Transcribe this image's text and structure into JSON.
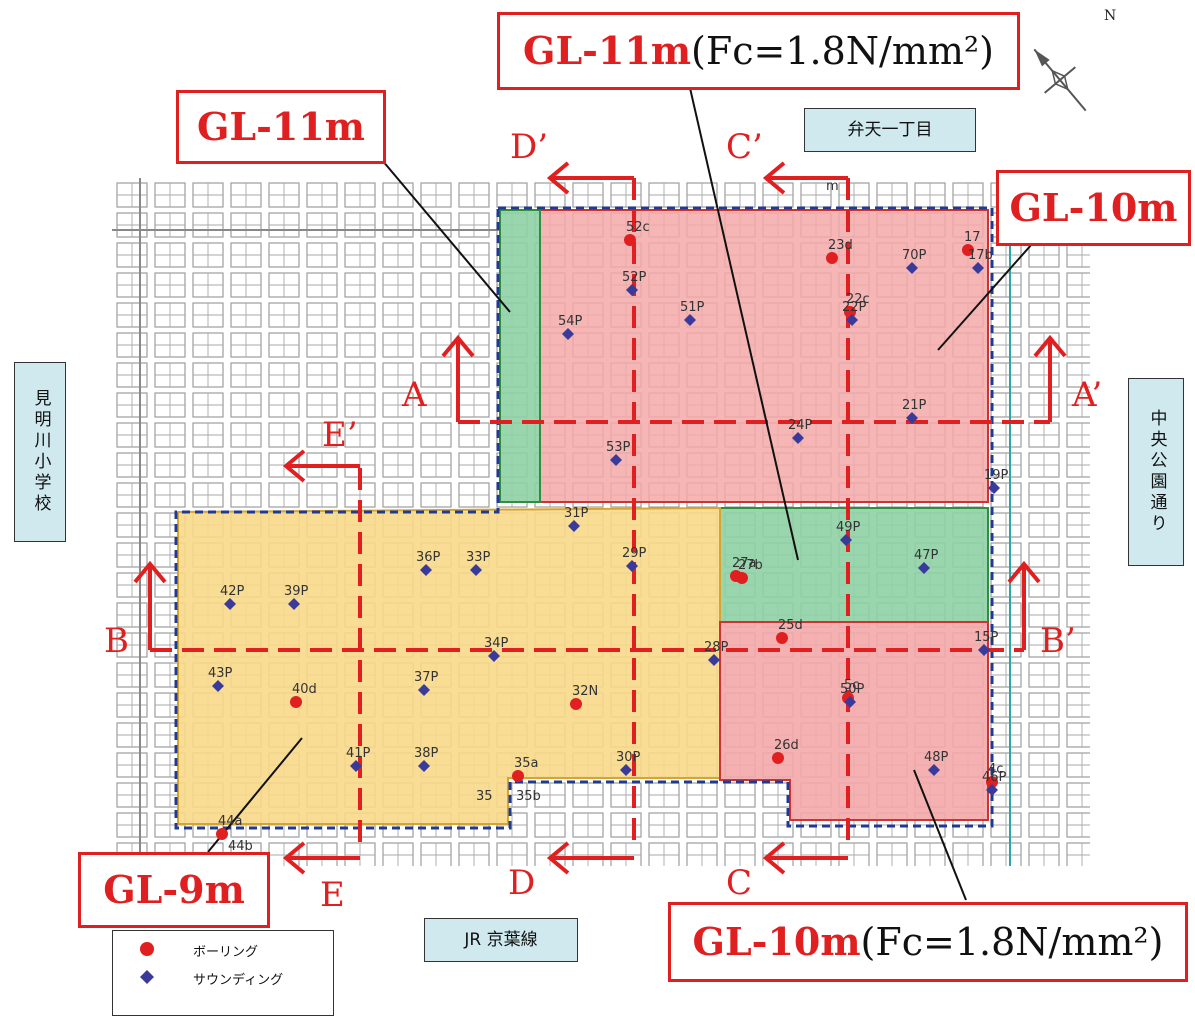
{
  "callouts": {
    "top_center": {
      "depth": "GL-11m",
      "fc": "(Fc=1.8N/mm²)"
    },
    "top_left": {
      "depth": "GL-11m"
    },
    "top_right": {
      "depth": "GL-10m"
    },
    "bottom_left": {
      "depth": "GL-9m"
    },
    "bottom_right": {
      "depth": "GL-10m",
      "fc": "(Fc=1.8N/mm²)"
    }
  },
  "streets": {
    "north": "弁天一丁目",
    "east": "中央公園通り",
    "west": "見明川小学校",
    "south": "JR 京葉線"
  },
  "sections": {
    "A": "A",
    "A_prime": "A’",
    "B": "B",
    "B_prime": "B’",
    "C": "C",
    "C_prime": "C’",
    "D": "D",
    "D_prime": "D’",
    "E": "E",
    "E_prime": "E’"
  },
  "north_label": "N",
  "boring_points": [
    "52c",
    "23d",
    "17",
    "22c",
    "27a",
    "27b",
    "25d",
    "5c",
    "26d",
    "40d",
    "32N",
    "35a",
    "44a",
    "4c"
  ],
  "sounding_points": [
    "52P",
    "51P",
    "54P",
    "70P",
    "17b",
    "22P",
    "24P",
    "21P",
    "53P",
    "31P",
    "29P",
    "36P",
    "33P",
    "42P",
    "39P",
    "34P",
    "28P",
    "43P",
    "37P",
    "41P",
    "38P",
    "30P",
    "49P",
    "47P",
    "50P",
    "48P",
    "15P",
    "19P",
    "46P"
  ],
  "other_labels": [
    "35",
    "35b",
    "44b",
    "m"
  ],
  "legend": {
    "boring": "ボーリング",
    "sounding": "サウンディング"
  },
  "colors": {
    "depth_10_11m": "#f4a9a9",
    "depth_9m": "#f8d98a",
    "depth_11m_fc": "#8ed1a4",
    "section_line": "#e02020",
    "boring": "#e02020",
    "sounding": "#3a3a9a",
    "boundary": "#1f3a93"
  }
}
